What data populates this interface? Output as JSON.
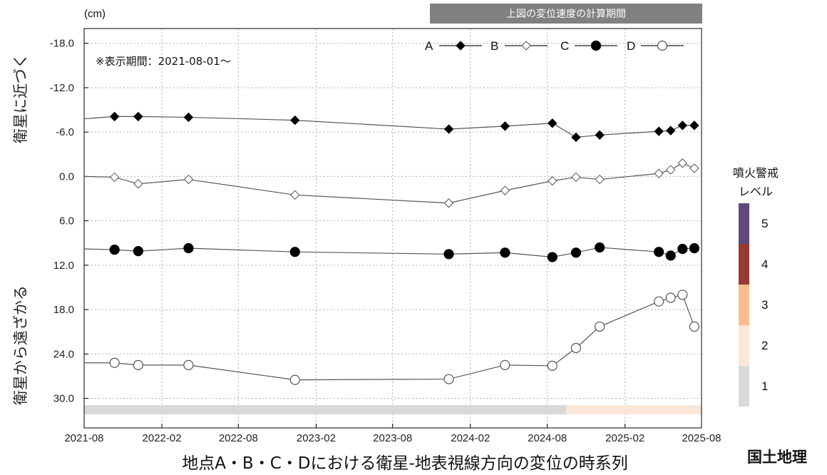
{
  "chart_data": {
    "type": "line",
    "unit_label": "(cm)",
    "banner": "上図の変位速度の計算期間",
    "note": "※表示期間：2021-08-01～",
    "ylabel_top": "衛星に近づく",
    "ylabel_bottom": "衛星から遠ざかる",
    "caption": "地点A・B・C・Dにおける衛星-地表視線方向の変位の時系列",
    "brand": "国土地理",
    "y_axis": {
      "min": -20,
      "max": 34,
      "inverted": true,
      "ticks": [
        "-18.0",
        "-12.0",
        "-6.0",
        "0.0",
        "6.0",
        "12.0",
        "18.0",
        "24.0",
        "30.0"
      ],
      "tick_values": [
        -18,
        -12,
        -6,
        0,
        6,
        12,
        18,
        24,
        30
      ]
    },
    "x_axis": {
      "min": "2021-08-01",
      "max": "2025-08-01",
      "ticks": [
        "2021-08",
        "2022-02",
        "2022-08",
        "2023-02",
        "2023-08",
        "2024-02",
        "2024-08",
        "2025-02",
        "2025-08"
      ],
      "tick_dates": [
        "2021-08-01",
        "2022-02-01",
        "2022-08-01",
        "2023-02-01",
        "2023-08-01",
        "2024-02-01",
        "2024-08-01",
        "2025-02-01",
        "2025-08-01"
      ]
    },
    "grid": true,
    "legend_position": "top-right",
    "series": [
      {
        "name": "A",
        "marker": "diamond-filled",
        "x": [
          "2021-08-01",
          "2021-10-12",
          "2021-12-07",
          "2022-04-05",
          "2022-12-13",
          "2023-12-12",
          "2024-04-23",
          "2024-08-13",
          "2024-10-08",
          "2024-12-03",
          "2025-04-22",
          "2025-05-20",
          "2025-06-17",
          "2025-07-15"
        ],
        "y": [
          -7.8,
          -8.1,
          -8.1,
          -8.0,
          -7.6,
          -6.4,
          -6.8,
          -7.2,
          -5.3,
          -5.6,
          -6.1,
          -6.2,
          -6.9,
          -6.9
        ]
      },
      {
        "name": "B",
        "marker": "diamond-open",
        "x": [
          "2021-08-01",
          "2021-10-12",
          "2021-12-07",
          "2022-04-05",
          "2022-12-13",
          "2023-12-12",
          "2024-04-23",
          "2024-08-13",
          "2024-10-08",
          "2024-12-03",
          "2025-04-22",
          "2025-05-20",
          "2025-06-17",
          "2025-07-15"
        ],
        "y": [
          0.0,
          0.1,
          1.0,
          0.4,
          2.5,
          3.6,
          1.9,
          0.6,
          0.1,
          0.4,
          -0.4,
          -0.9,
          -1.8,
          -1.1
        ]
      },
      {
        "name": "C",
        "marker": "circle-filled",
        "x": [
          "2021-08-01",
          "2021-10-12",
          "2021-12-07",
          "2022-04-05",
          "2022-12-13",
          "2023-12-12",
          "2024-04-23",
          "2024-08-13",
          "2024-10-08",
          "2024-12-03",
          "2025-04-22",
          "2025-05-20",
          "2025-06-17",
          "2025-07-15"
        ],
        "y": [
          9.8,
          9.9,
          10.1,
          9.7,
          10.2,
          10.5,
          10.3,
          10.9,
          10.3,
          9.6,
          10.2,
          10.7,
          9.8,
          9.7
        ]
      },
      {
        "name": "D",
        "marker": "circle-open",
        "x": [
          "2021-08-01",
          "2021-10-12",
          "2021-12-07",
          "2022-04-05",
          "2022-12-13",
          "2023-12-12",
          "2024-04-23",
          "2024-08-13",
          "2024-10-08",
          "2024-12-03",
          "2025-04-22",
          "2025-05-20",
          "2025-06-17",
          "2025-07-15"
        ],
        "y": [
          25.2,
          25.2,
          25.5,
          25.5,
          27.5,
          27.4,
          25.5,
          25.6,
          23.2,
          20.3,
          16.9,
          16.4,
          16.0,
          20.3
        ]
      }
    ],
    "alert_band": [
      {
        "start": "2021-08-01",
        "end": "2024-09-15",
        "level": 1
      },
      {
        "start": "2024-09-15",
        "end": "2025-08-01",
        "level": 2
      }
    ]
  },
  "alert_legend": {
    "title_line1": "噴火警戒",
    "title_line2": "レベル",
    "levels": [
      {
        "label": "5",
        "color": "#5d4a7c"
      },
      {
        "label": "4",
        "color": "#953a35"
      },
      {
        "label": "3",
        "color": "#f8bd8c"
      },
      {
        "label": "2",
        "color": "#fbe7d9"
      },
      {
        "label": "1",
        "color": "#d9d9d9"
      }
    ]
  },
  "colors": {
    "line": "#555555",
    "banner_bg": "#808080",
    "grid": "#b0b0b0"
  }
}
